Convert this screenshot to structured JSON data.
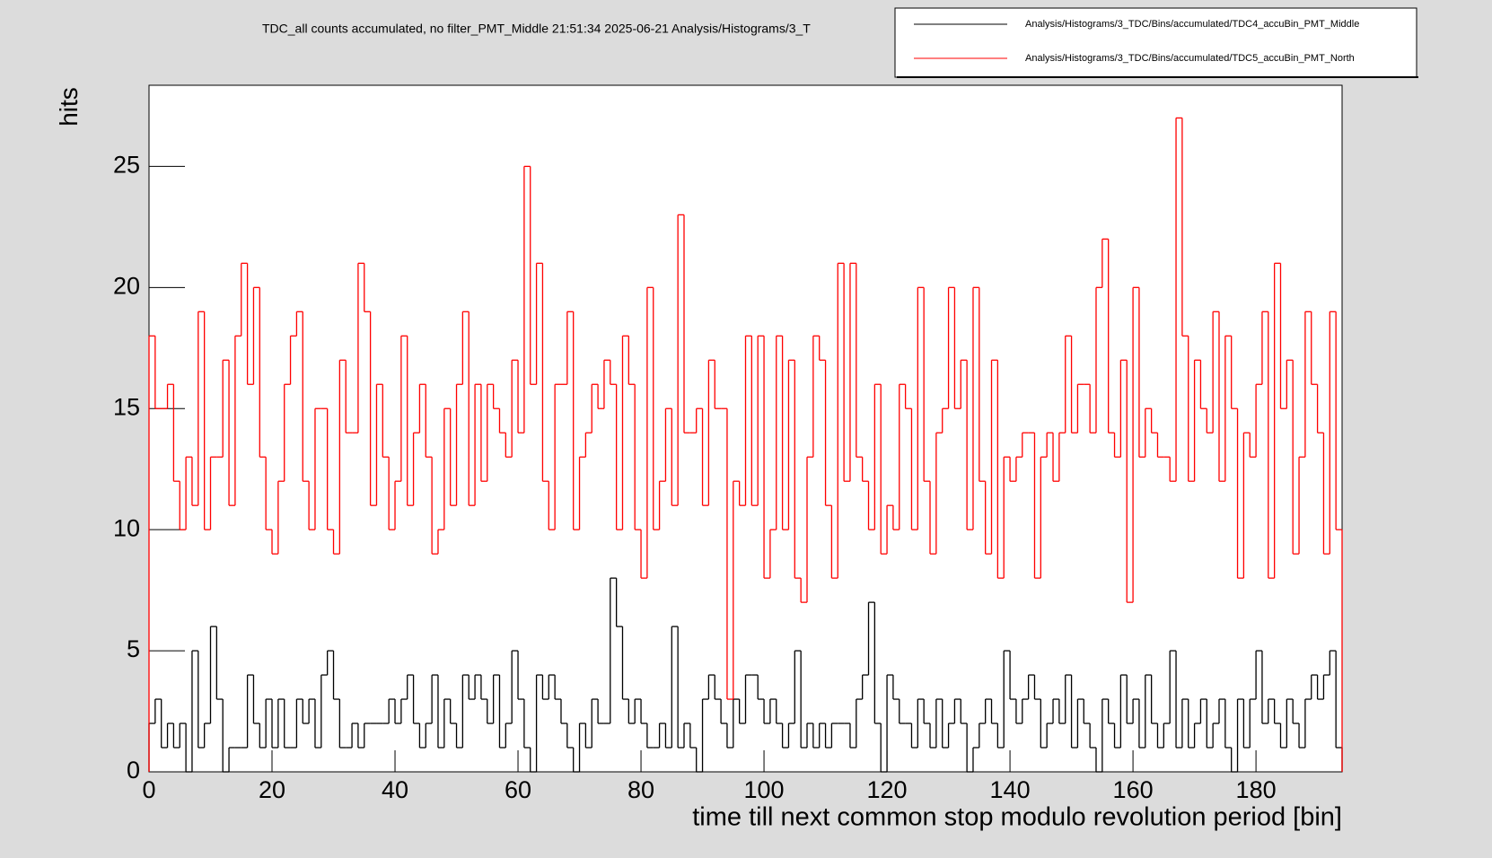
{
  "chart_data": {
    "type": "histogram",
    "title": "TDC_all counts accumulated, no filter_PMT_Middle  21:51:34  2025-06-21  Analysis/Histograms/3_T",
    "x_label": "time till next common stop modulo revolution period [bin]",
    "y_label": "hits",
    "xlim": [
      0,
      194
    ],
    "ylim": [
      0,
      28.35
    ],
    "xticks": [
      0,
      20,
      40,
      60,
      80,
      100,
      120,
      140,
      160,
      180
    ],
    "yticks": [
      0,
      5,
      10,
      15,
      20,
      25
    ],
    "legend": "top-right",
    "bins": [
      0,
      1,
      2,
      3,
      4,
      5,
      6,
      7,
      8,
      9,
      10,
      11,
      12,
      13,
      14,
      15,
      16,
      17,
      18,
      19,
      20,
      21,
      22,
      23,
      24,
      25,
      26,
      27,
      28,
      29,
      30,
      31,
      32,
      33,
      34,
      35,
      36,
      37,
      38,
      39,
      40,
      41,
      42,
      43,
      44,
      45,
      46,
      47,
      48,
      49,
      50,
      51,
      52,
      53,
      54,
      55,
      56,
      57,
      58,
      59,
      60,
      61,
      62,
      63,
      64,
      65,
      66,
      67,
      68,
      69,
      70,
      71,
      72,
      73,
      74,
      75,
      76,
      77,
      78,
      79,
      80,
      81,
      82,
      83,
      84,
      85,
      86,
      87,
      88,
      89,
      90,
      91,
      92,
      93,
      94,
      95,
      96,
      97,
      98,
      99,
      100,
      101,
      102,
      103,
      104,
      105,
      106,
      107,
      108,
      109,
      110,
      111,
      112,
      113,
      114,
      115,
      116,
      117,
      118,
      119,
      120,
      121,
      122,
      123,
      124,
      125,
      126,
      127,
      128,
      129,
      130,
      131,
      132,
      133,
      134,
      135,
      136,
      137,
      138,
      139,
      140,
      141,
      142,
      143,
      144,
      145,
      146,
      147,
      148,
      149,
      150,
      151,
      152,
      153,
      154,
      155,
      156,
      157,
      158,
      159,
      160,
      161,
      162,
      163,
      164,
      165,
      166,
      167,
      168,
      169,
      170,
      171,
      172,
      173,
      174,
      175,
      176,
      177,
      178,
      179,
      180,
      181,
      182,
      183,
      184,
      185,
      186,
      187,
      188,
      189,
      190,
      191,
      192,
      193,
      194
    ],
    "series": [
      {
        "name": "Analysis/Histograms/3_TDC/Bins/accumulated/TDC4_accuBin_PMT_Middle",
        "color": "#000000",
        "values": [
          2,
          3,
          1,
          2,
          1,
          2,
          0,
          5,
          1,
          2,
          6,
          3,
          0,
          1,
          1,
          1,
          4,
          2,
          1,
          3,
          1,
          3,
          1,
          1,
          3,
          2,
          3,
          1,
          4,
          5,
          3,
          1,
          1,
          2,
          1,
          2,
          2,
          2,
          2,
          3,
          2,
          3,
          4,
          2,
          1,
          2,
          4,
          1,
          3,
          2,
          1,
          4,
          3,
          4,
          3,
          2,
          4,
          1,
          2,
          5,
          3,
          1,
          0,
          4,
          3,
          4,
          3,
          2,
          1,
          0,
          2,
          1,
          3,
          2,
          2,
          8,
          6,
          3,
          2,
          3,
          2,
          1,
          1,
          2,
          1,
          6,
          1,
          2,
          1,
          0,
          3,
          4,
          3,
          2,
          1,
          3,
          2,
          4,
          4,
          3,
          2,
          3,
          2,
          1,
          2,
          5,
          1,
          2,
          1,
          2,
          1,
          2,
          2,
          2,
          1,
          3,
          4,
          7,
          2,
          0,
          4,
          3,
          2,
          2,
          1,
          3,
          2,
          1,
          3,
          1,
          2,
          3,
          2,
          0,
          1,
          2,
          3,
          2,
          1,
          5,
          3,
          2,
          3,
          4,
          3,
          1,
          2,
          3,
          2,
          4,
          1,
          3,
          2,
          1,
          0,
          3,
          2,
          1,
          4,
          2,
          3,
          1,
          4,
          2,
          1,
          2,
          5,
          1,
          3,
          1,
          2,
          3,
          1,
          2,
          3,
          1,
          0,
          3,
          1,
          3,
          5,
          2,
          3,
          2,
          1,
          3,
          2,
          1,
          3,
          4,
          3,
          4,
          5,
          1
        ]
      },
      {
        "name": "Analysis/Histograms/3_TDC/Bins/accumulated/TDC5_accuBin_PMT_North",
        "color": "#ff0000",
        "values": [
          18,
          15,
          15,
          16,
          12,
          10,
          13,
          11,
          19,
          10,
          13,
          13,
          17,
          11,
          18,
          21,
          16,
          20,
          13,
          10,
          9,
          12,
          16,
          18,
          19,
          12,
          10,
          15,
          15,
          10,
          9,
          17,
          14,
          14,
          21,
          19,
          11,
          16,
          13,
          10,
          12,
          18,
          11,
          14,
          16,
          13,
          9,
          10,
          15,
          11,
          16,
          19,
          11,
          16,
          12,
          16,
          15,
          14,
          13,
          17,
          14,
          25,
          16,
          21,
          12,
          10,
          16,
          16,
          19,
          10,
          13,
          14,
          16,
          15,
          17,
          16,
          10,
          18,
          16,
          10,
          8,
          20,
          10,
          12,
          15,
          11,
          23,
          14,
          14,
          15,
          11,
          17,
          15,
          15,
          3,
          12,
          11,
          18,
          11,
          18,
          8,
          10,
          18,
          10,
          17,
          8,
          7,
          13,
          18,
          17,
          11,
          8,
          21,
          12,
          21,
          13,
          12,
          10,
          16,
          9,
          11,
          10,
          16,
          15,
          10,
          20,
          12,
          9,
          14,
          15,
          20,
          15,
          17,
          10,
          20,
          12,
          9,
          17,
          8,
          13,
          12,
          13,
          14,
          14,
          8,
          13,
          14,
          12,
          14,
          18,
          14,
          16,
          16,
          14,
          20,
          22,
          14,
          13,
          17,
          7,
          20,
          13,
          15,
          14,
          13,
          13,
          12,
          27,
          18,
          12,
          17,
          15,
          14,
          19,
          12,
          18,
          15,
          8,
          14,
          13,
          16,
          19,
          8,
          21,
          15,
          17,
          9,
          13,
          19,
          16,
          14,
          9,
          19,
          10
        ]
      }
    ]
  }
}
